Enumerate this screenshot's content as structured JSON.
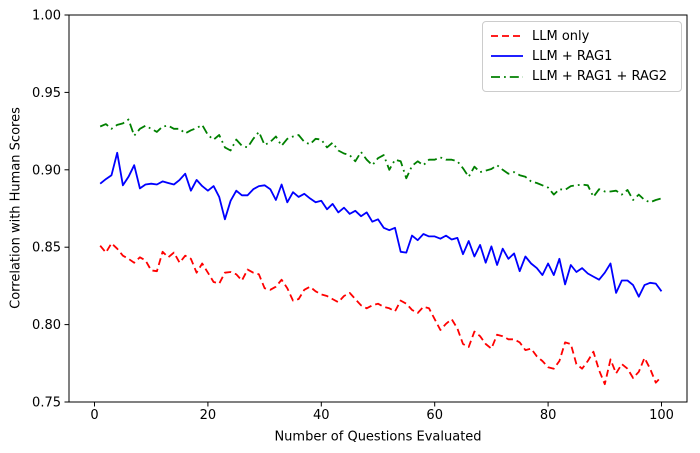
{
  "figure": {
    "background": "#ffffff",
    "axis_color": "#000000",
    "legend_border_color": "#cccccc"
  },
  "chart_data": {
    "type": "line",
    "title": "",
    "xlabel": "Number of Questions Evaluated",
    "ylabel": "Correlation with Human Scores",
    "xlim": [
      -4.5,
      104.5
    ],
    "ylim": [
      0.75,
      1.0
    ],
    "grid": false,
    "legend_position": "upper right",
    "x_ticks": {
      "values": [
        0,
        20,
        40,
        60,
        80,
        100
      ],
      "labels": [
        "0",
        "20",
        "40",
        "60",
        "80",
        "100"
      ]
    },
    "y_ticks": {
      "values": [
        0.75,
        0.8,
        0.85,
        0.9,
        0.95,
        1.0
      ],
      "labels": [
        "0.75",
        "0.80",
        "0.85",
        "0.90",
        "0.95",
        "1.00"
      ]
    },
    "x": [
      1,
      2,
      3,
      4,
      5,
      6,
      7,
      8,
      9,
      10,
      11,
      12,
      13,
      14,
      15,
      16,
      17,
      18,
      19,
      20,
      21,
      22,
      23,
      24,
      25,
      26,
      27,
      28,
      29,
      30,
      31,
      32,
      33,
      34,
      35,
      36,
      37,
      38,
      39,
      40,
      41,
      42,
      43,
      44,
      45,
      46,
      47,
      48,
      49,
      50,
      51,
      52,
      53,
      54,
      55,
      56,
      57,
      58,
      59,
      60,
      61,
      62,
      63,
      64,
      65,
      66,
      67,
      68,
      69,
      70,
      71,
      72,
      73,
      74,
      75,
      76,
      77,
      78,
      79,
      80,
      81,
      82,
      83,
      84,
      85,
      86,
      87,
      88,
      89,
      90,
      91,
      92,
      93,
      94,
      95,
      96,
      97,
      98,
      99,
      100
    ],
    "series": [
      {
        "name": "LLM only",
        "color": "#ff0000",
        "style": "dashed",
        "values": [
          0.851,
          0.8465,
          0.8525,
          0.849,
          0.8445,
          0.8425,
          0.84,
          0.8435,
          0.8415,
          0.835,
          0.8345,
          0.847,
          0.8435,
          0.8465,
          0.84,
          0.8445,
          0.8425,
          0.8335,
          0.8395,
          0.8335,
          0.8275,
          0.8265,
          0.8335,
          0.834,
          0.8325,
          0.8285,
          0.8355,
          0.8335,
          0.8325,
          0.8235,
          0.8225,
          0.8245,
          0.829,
          0.8235,
          0.8155,
          0.8165,
          0.8225,
          0.8245,
          0.8215,
          0.8195,
          0.8185,
          0.8165,
          0.8145,
          0.8185,
          0.8205,
          0.8165,
          0.8125,
          0.8105,
          0.8125,
          0.8135,
          0.8115,
          0.8105,
          0.8085,
          0.8155,
          0.8135,
          0.8095,
          0.8075,
          0.8115,
          0.8105,
          0.8035,
          0.7965,
          0.8005,
          0.8035,
          0.7975,
          0.7875,
          0.7855,
          0.7955,
          0.7925,
          0.7875,
          0.7845,
          0.7935,
          0.7925,
          0.7905,
          0.7905,
          0.7885,
          0.7835,
          0.7845,
          0.7795,
          0.7765,
          0.7725,
          0.7715,
          0.7765,
          0.7885,
          0.7875,
          0.7745,
          0.7715,
          0.7765,
          0.7825,
          0.7705,
          0.7615,
          0.7775,
          0.7685,
          0.7745,
          0.7715,
          0.7655,
          0.7695,
          0.7785,
          0.7715,
          0.7625,
          0.7665
        ]
      },
      {
        "name": "LLM + RAG1",
        "color": "#0000ff",
        "style": "solid",
        "values": [
          0.891,
          0.894,
          0.8965,
          0.911,
          0.89,
          0.8955,
          0.903,
          0.888,
          0.8905,
          0.891,
          0.8905,
          0.8925,
          0.8915,
          0.8905,
          0.8935,
          0.8975,
          0.8865,
          0.8935,
          0.8895,
          0.8865,
          0.8895,
          0.8825,
          0.868,
          0.88,
          0.8865,
          0.8835,
          0.8835,
          0.8875,
          0.8895,
          0.89,
          0.8875,
          0.8805,
          0.8905,
          0.879,
          0.8855,
          0.8825,
          0.8845,
          0.8815,
          0.879,
          0.88,
          0.8745,
          0.878,
          0.8725,
          0.8755,
          0.8715,
          0.8735,
          0.87,
          0.8725,
          0.8665,
          0.868,
          0.8625,
          0.861,
          0.8625,
          0.847,
          0.8465,
          0.8575,
          0.8545,
          0.8585,
          0.857,
          0.857,
          0.8555,
          0.8575,
          0.855,
          0.856,
          0.8455,
          0.854,
          0.844,
          0.8515,
          0.84,
          0.8505,
          0.8385,
          0.849,
          0.8425,
          0.846,
          0.8345,
          0.844,
          0.8395,
          0.8365,
          0.832,
          0.8395,
          0.832,
          0.8425,
          0.826,
          0.8385,
          0.834,
          0.8365,
          0.833,
          0.831,
          0.829,
          0.8335,
          0.8395,
          0.8205,
          0.8285,
          0.8285,
          0.8255,
          0.818,
          0.8255,
          0.827,
          0.8265,
          0.8215
        ]
      },
      {
        "name": "LLM + RAG1 + RAG2",
        "color": "#008000",
        "style": "dashdot",
        "values": [
          0.928,
          0.9295,
          0.9265,
          0.929,
          0.93,
          0.9325,
          0.922,
          0.9265,
          0.9285,
          0.9265,
          0.9245,
          0.928,
          0.9285,
          0.9265,
          0.9265,
          0.9235,
          0.9255,
          0.927,
          0.929,
          0.9225,
          0.9195,
          0.9225,
          0.9145,
          0.9125,
          0.9195,
          0.9155,
          0.9145,
          0.92,
          0.9245,
          0.916,
          0.918,
          0.9215,
          0.9155,
          0.92,
          0.9215,
          0.9225,
          0.918,
          0.9165,
          0.92,
          0.9195,
          0.9145,
          0.9175,
          0.9125,
          0.9105,
          0.9095,
          0.9055,
          0.9115,
          0.9065,
          0.903,
          0.9075,
          0.9095,
          0.9,
          0.9065,
          0.9055,
          0.8945,
          0.9025,
          0.9055,
          0.903,
          0.9065,
          0.9065,
          0.908,
          0.9065,
          0.9065,
          0.9055,
          0.901,
          0.8955,
          0.902,
          0.8985,
          0.8995,
          0.9005,
          0.903,
          0.9,
          0.8975,
          0.8985,
          0.8965,
          0.8955,
          0.8925,
          0.8915,
          0.89,
          0.8885,
          0.884,
          0.8875,
          0.887,
          0.8895,
          0.89,
          0.8905,
          0.89,
          0.8825,
          0.8875,
          0.886,
          0.886,
          0.8865,
          0.884,
          0.887,
          0.8805,
          0.884,
          0.8805,
          0.879,
          0.8805,
          0.8815
        ]
      }
    ]
  }
}
